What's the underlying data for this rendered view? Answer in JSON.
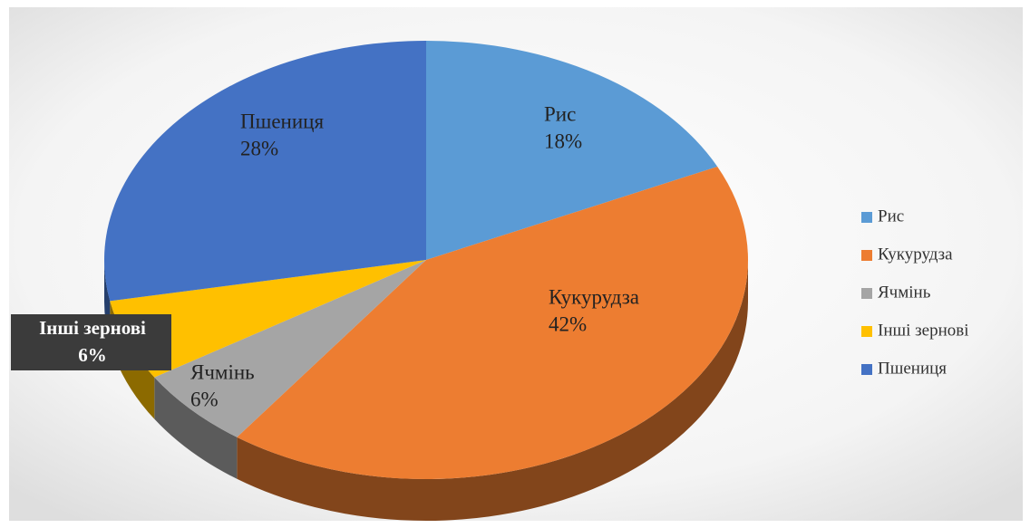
{
  "chart_data": {
    "type": "pie",
    "categories": [
      "Рис",
      "Кукурудза",
      "Ячмінь",
      "Інші зернові",
      "Пшениця"
    ],
    "values": [
      18,
      42,
      6,
      6,
      28
    ],
    "value_labels": [
      "18%",
      "42%",
      "6%",
      "6%",
      "28%"
    ],
    "colors": [
      "#5b9bd5",
      "#ed7d31",
      "#a5a5a5",
      "#ffc000",
      "#4472c4"
    ],
    "legend": "right"
  }
}
